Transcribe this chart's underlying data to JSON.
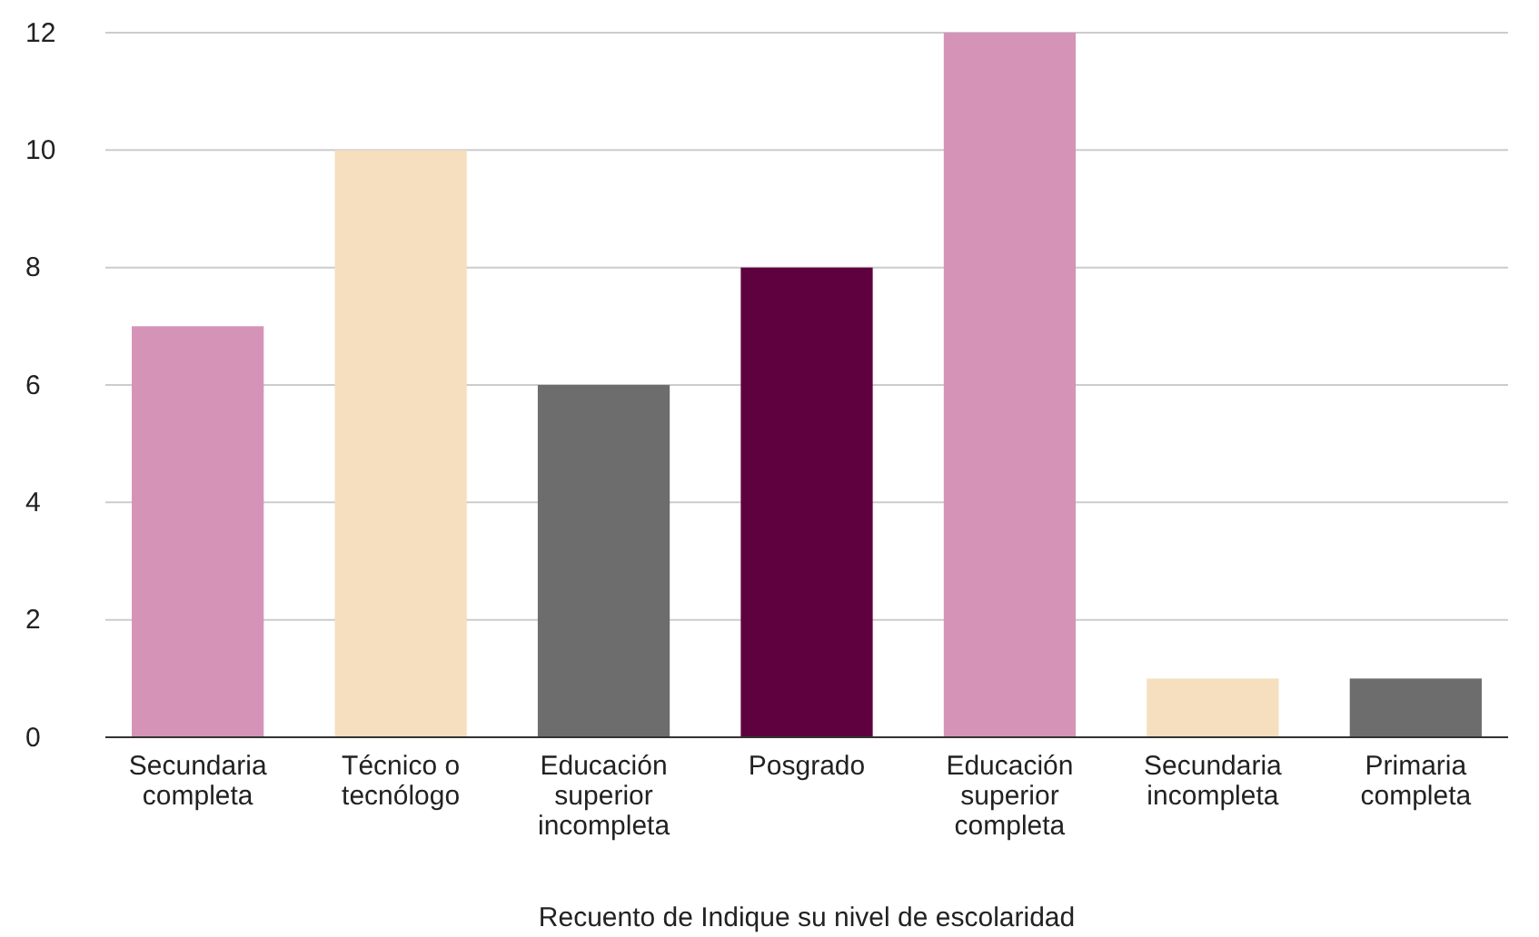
{
  "chart_data": {
    "type": "bar",
    "xlabel": "Recuento de Indique su nivel de escolaridad",
    "categories": [
      "Secundaria completa",
      "Técnico o tecnólogo",
      "Educación superior incompleta",
      "Posgrado",
      "Educación superior completa",
      "Secundaria incompleta",
      "Primaria completa"
    ],
    "values": [
      7,
      10,
      6,
      8,
      12,
      1,
      1
    ],
    "colors": [
      "#d593b7",
      "#f5dfbf",
      "#6d6d6d",
      "#5f003f",
      "#d593b7",
      "#f5dfbf",
      "#6d6d6d"
    ],
    "ylim": [
      0,
      12
    ],
    "yticks": [
      0,
      2,
      4,
      6,
      8,
      10,
      12
    ],
    "grid": true
  }
}
